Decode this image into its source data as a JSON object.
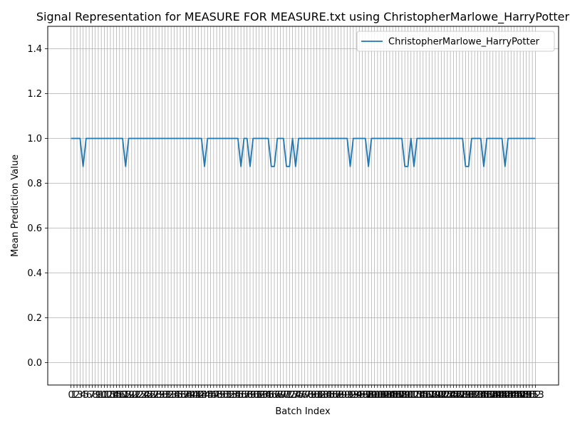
{
  "chart_data": {
    "type": "line",
    "title": "Signal Representation for MEASURE FOR MEASURE.txt using ChristopherMarlowe_HarryPotter",
    "xlabel": "Batch Index",
    "ylabel": "Mean Prediction Value",
    "xlim": [
      -7.65,
      160.65
    ],
    "ylim": [
      -0.1,
      1.5
    ],
    "yticks": [
      0.0,
      0.2,
      0.4,
      0.6,
      0.8,
      1.0,
      1.2,
      1.4
    ],
    "ytick_labels": [
      "0.0",
      "0.2",
      "0.4",
      "0.6",
      "0.8",
      "1.0",
      "1.2",
      "1.4"
    ],
    "xticks_from": 0,
    "xticks_to": 153,
    "grid": true,
    "legend": "top-right",
    "colors": {
      "series": "#1f77b4",
      "grid": "#b0b0b0"
    },
    "series": [
      {
        "name": "ChristopherMarlowe_HarryPotter",
        "dips": [
          4,
          18,
          44,
          56,
          59,
          66,
          67,
          71,
          72,
          74,
          92,
          98,
          110,
          111,
          113,
          130,
          131,
          136,
          143
        ],
        "baseline": 1.0,
        "dip_value": 0.875
      }
    ]
  }
}
